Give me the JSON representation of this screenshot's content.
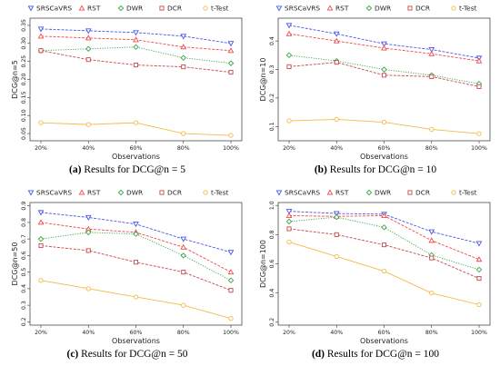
{
  "colors": {
    "SRSCaVRS": "#4a55e8",
    "RST": "#f04a4a",
    "DWR": "#3aa648",
    "DCR": "#c8484a",
    "t-Test": "#f5b94a"
  },
  "chart_data": [
    {
      "type": "line",
      "caption_label": "(a)",
      "caption_text": "Results for DCG@n = 5",
      "categories": [
        "20%",
        "40%",
        "60%",
        "80%",
        "100%"
      ],
      "xlabel": "Observations",
      "ylabel": "DCG@n=5",
      "ylim": [
        0.03,
        0.37
      ],
      "yticks": [
        0.05,
        0.1,
        0.15,
        0.2,
        0.25,
        0.3,
        0.35
      ],
      "ytick_labels": [
        "0.05",
        "0.10",
        "0.15",
        "0.20",
        "0.25",
        "0.30",
        "0.35"
      ],
      "grid": false,
      "legend_placement": "top",
      "series": [
        {
          "name": "SRSCaVRS",
          "values": [
            0.34,
            0.335,
            0.33,
            0.32,
            0.3
          ]
        },
        {
          "name": "RST",
          "values": [
            0.32,
            0.315,
            0.31,
            0.29,
            0.28
          ]
        },
        {
          "name": "DWR",
          "values": [
            0.28,
            0.285,
            0.29,
            0.26,
            0.245
          ]
        },
        {
          "name": "DCR",
          "values": [
            0.28,
            0.255,
            0.24,
            0.235,
            0.22
          ]
        },
        {
          "name": "t-Test",
          "values": [
            0.08,
            0.075,
            0.08,
            0.05,
            0.045
          ]
        }
      ]
    },
    {
      "type": "line",
      "caption_label": "(b)",
      "caption_text": "Results for DCG@n = 10",
      "categories": [
        "20%",
        "40%",
        "60%",
        "80%",
        "100%"
      ],
      "xlabel": "Observations",
      "ylabel": "DCG@n=10",
      "ylim": [
        0.05,
        0.48
      ],
      "yticks": [
        0.1,
        0.2,
        0.3,
        0.4
      ],
      "ytick_labels": [
        "0.1",
        "0.2",
        "0.3",
        "0.4"
      ],
      "grid": false,
      "legend_placement": "top",
      "series": [
        {
          "name": "SRSCaVRS",
          "values": [
            0.455,
            0.425,
            0.39,
            0.37,
            0.34
          ]
        },
        {
          "name": "RST",
          "values": [
            0.425,
            0.4,
            0.375,
            0.355,
            0.33
          ]
        },
        {
          "name": "DWR",
          "values": [
            0.35,
            0.33,
            0.3,
            0.28,
            0.25
          ]
        },
        {
          "name": "DCR",
          "values": [
            0.31,
            0.325,
            0.28,
            0.275,
            0.24
          ]
        },
        {
          "name": "t-Test",
          "values": [
            0.12,
            0.125,
            0.115,
            0.09,
            0.075
          ]
        }
      ]
    },
    {
      "type": "line",
      "caption_label": "(c)",
      "caption_text": "Results for DCG@n = 50",
      "categories": [
        "20%",
        "40%",
        "60%",
        "80%",
        "100%"
      ],
      "xlabel": "Observations",
      "ylabel": "DCG@n=50",
      "ylim": [
        0.18,
        0.92
      ],
      "yticks": [
        0.2,
        0.3,
        0.4,
        0.5,
        0.6,
        0.7,
        0.8,
        0.9
      ],
      "ytick_labels": [
        "0.2",
        "0.3",
        "0.4",
        "0.5",
        "0.6",
        "0.7",
        "0.8",
        "0.9"
      ],
      "grid": false,
      "legend_placement": "top",
      "series": [
        {
          "name": "SRSCaVRS",
          "values": [
            0.86,
            0.83,
            0.79,
            0.7,
            0.62
          ]
        },
        {
          "name": "RST",
          "values": [
            0.8,
            0.76,
            0.74,
            0.65,
            0.5
          ]
        },
        {
          "name": "DWR",
          "values": [
            0.7,
            0.74,
            0.73,
            0.6,
            0.45
          ]
        },
        {
          "name": "DCR",
          "values": [
            0.66,
            0.63,
            0.56,
            0.5,
            0.39
          ]
        },
        {
          "name": "t-Test",
          "values": [
            0.45,
            0.4,
            0.35,
            0.3,
            0.22
          ]
        }
      ]
    },
    {
      "type": "line",
      "caption_label": "(d)",
      "caption_text": "Results for DCG@n = 100",
      "categories": [
        "20%",
        "40%",
        "60%",
        "80%",
        "100%"
      ],
      "xlabel": "Observations",
      "ylabel": "DCG@n=100",
      "ylim": [
        0.18,
        1.02
      ],
      "yticks": [
        0.2,
        0.4,
        0.6,
        0.8,
        1.0
      ],
      "ytick_labels": [
        "0.2",
        "0.4",
        "0.6",
        "0.8",
        "1.0"
      ],
      "grid": false,
      "legend_placement": "top",
      "series": [
        {
          "name": "SRSCaVRS",
          "values": [
            0.96,
            0.945,
            0.94,
            0.82,
            0.74
          ]
        },
        {
          "name": "RST",
          "values": [
            0.93,
            0.925,
            0.93,
            0.76,
            0.63
          ]
        },
        {
          "name": "DWR",
          "values": [
            0.89,
            0.92,
            0.85,
            0.66,
            0.56
          ]
        },
        {
          "name": "DCR",
          "values": [
            0.84,
            0.8,
            0.73,
            0.64,
            0.5
          ]
        },
        {
          "name": "t-Test",
          "values": [
            0.75,
            0.65,
            0.55,
            0.4,
            0.32
          ]
        }
      ]
    }
  ]
}
